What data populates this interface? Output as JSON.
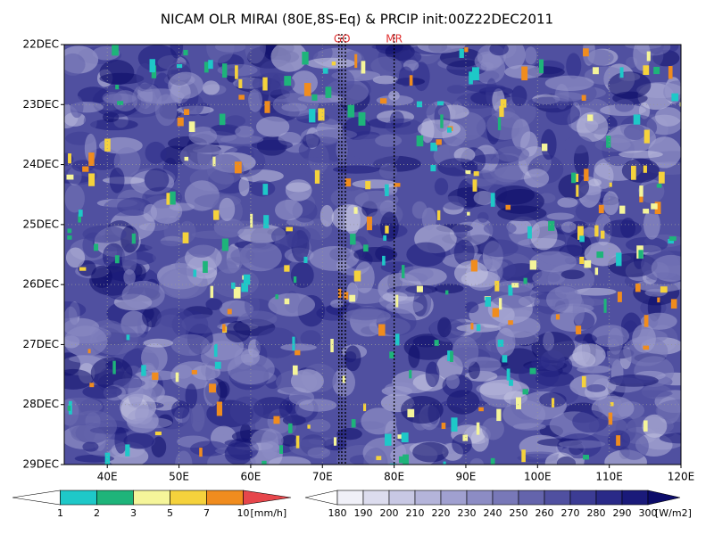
{
  "chart_data": {
    "type": "hovmoller",
    "title": "NICAM OLR MIRAI (80E,8S-Eq) & PRCIP init:00Z22DEC2011",
    "xlim": [
      34,
      120
    ],
    "xticks": [
      {
        "value": 40,
        "label": "40E"
      },
      {
        "value": 50,
        "label": "50E"
      },
      {
        "value": 60,
        "label": "60E"
      },
      {
        "value": 70,
        "label": "70E"
      },
      {
        "value": 80,
        "label": "80E"
      },
      {
        "value": 90,
        "label": "90E"
      },
      {
        "value": 100,
        "label": "100E"
      },
      {
        "value": 110,
        "label": "110E"
      },
      {
        "value": 120,
        "label": "120E"
      }
    ],
    "y_categories": [
      "22DEC",
      "23DEC",
      "24DEC",
      "25DEC",
      "26DEC",
      "27DEC",
      "28DEC",
      "29DEC"
    ],
    "grid": true,
    "markers": [
      {
        "label": "GO",
        "x": [
          72.3,
          72.7,
          73.2
        ],
        "color": "#e03030"
      },
      {
        "label": "MR",
        "x": [
          80
        ],
        "color": "#e03030"
      }
    ],
    "colorbars": [
      {
        "levels": [
          1,
          2,
          3,
          5,
          7,
          10
        ],
        "unit": "[mm/h]",
        "colors": [
          "#ffffff",
          "#1ec8c8",
          "#1eb47a",
          "#f5f59a",
          "#f5d23c",
          "#f08c1e",
          "#e6464b"
        ]
      },
      {
        "levels": [
          180,
          190,
          200,
          210,
          220,
          230,
          240,
          250,
          260,
          270,
          280,
          290,
          300
        ],
        "unit": "[W/m2]",
        "colors": [
          "#ffffff",
          "#f0f0f8",
          "#dcdcee",
          "#c8c8e4",
          "#b4b4da",
          "#a0a0d0",
          "#8c8cc4",
          "#7878b8",
          "#6464ac",
          "#5050a0",
          "#3c3c94",
          "#2a2a88",
          "#1a1a7a",
          "#0c0c6a"
        ]
      }
    ]
  }
}
